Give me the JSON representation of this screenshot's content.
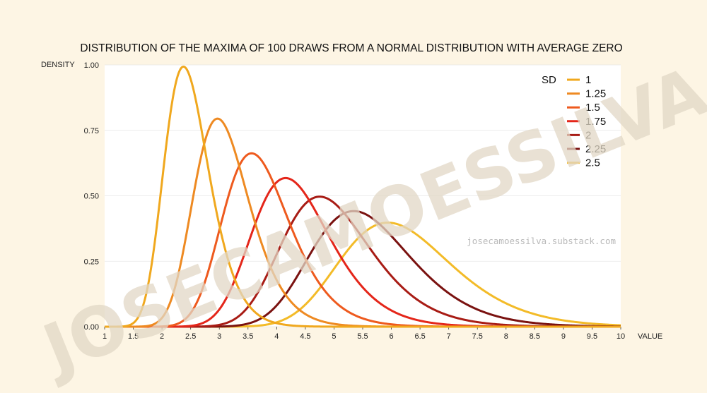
{
  "chart_data": {
    "type": "line",
    "title": "DISTRIBUTION OF THE MAXIMA OF 100 DRAWS FROM A NORMAL DISTRIBUTION WITH AVERAGE ZERO",
    "xlabel": "VALUE",
    "ylabel": "DENSITY",
    "xlim": [
      1,
      10
    ],
    "ylim": [
      0,
      1.0
    ],
    "x_ticks": [
      "1",
      "1.5",
      "2",
      "2.5",
      "3",
      "3.5",
      "4",
      "4.5",
      "5",
      "5.5",
      "6",
      "6.5",
      "7",
      "7.5",
      "8",
      "8.5",
      "9",
      "9.5",
      "10"
    ],
    "y_ticks": [
      "0.00",
      "0.25",
      "0.50",
      "0.75",
      "1.00"
    ],
    "grid": "horizontal",
    "legend": {
      "title": "SD",
      "position": "top-right"
    },
    "draws": 100,
    "series": [
      {
        "name": "1",
        "sd": 1,
        "color": "#f0a81e"
      },
      {
        "name": "1.25",
        "sd": 1.25,
        "color": "#ee8a22"
      },
      {
        "name": "1.5",
        "sd": 1.5,
        "color": "#ee5a1e"
      },
      {
        "name": "1.75",
        "sd": 1.75,
        "color": "#e4261a"
      },
      {
        "name": "2",
        "sd": 2,
        "color": "#a81c15"
      },
      {
        "name": "2.25",
        "sd": 2.25,
        "color": "#7a1210"
      },
      {
        "name": "2.5",
        "sd": 2.5,
        "color": "#f3bb28"
      }
    ]
  },
  "watermark": {
    "url": "josecamoessilva.substack.com",
    "big": "JOSECAMOESSILVA"
  }
}
